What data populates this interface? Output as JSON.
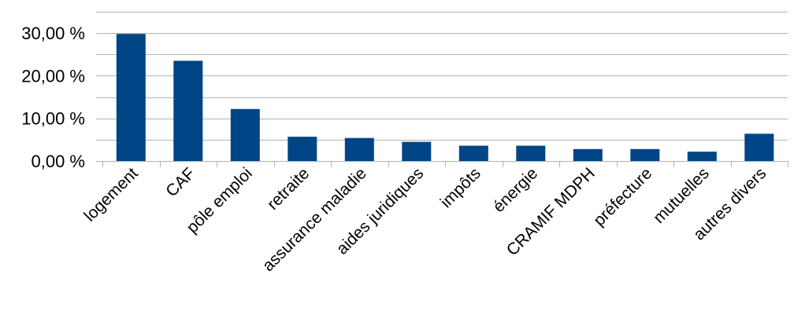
{
  "chart_data": {
    "type": "bar",
    "categories": [
      "logement",
      "CAF",
      "pôle emploi",
      "retraite",
      "assurance maladie",
      "aides juridiques",
      "impôts",
      "énergie",
      "CRAMIF MDPH",
      "préfecture",
      "mutuelles",
      "autres divers"
    ],
    "values": [
      29.8,
      23.5,
      12.2,
      5.7,
      5.4,
      4.5,
      3.6,
      3.6,
      2.8,
      2.8,
      2.2,
      6.4
    ],
    "ylim": [
      0,
      35
    ],
    "yticks": [
      0,
      10,
      20,
      30
    ],
    "ytick_labels": [
      "0,00 %",
      "10,00 %",
      "20,00 %",
      "30,00 %"
    ],
    "title": "",
    "xlabel": "",
    "ylabel": "",
    "grid": true,
    "bar_color": "#004586"
  }
}
